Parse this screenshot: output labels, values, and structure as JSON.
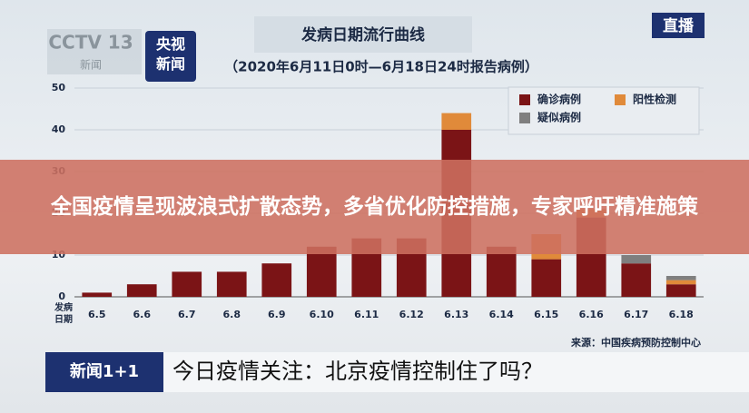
{
  "chart_data": {
    "type": "bar",
    "stacked": true,
    "title": "发病日期流行曲线",
    "subtitle": "（2020年6月11日0时—6月18日24时报告病例）",
    "x_label": "发病日期",
    "source": "来源：中国疾病预防控制中心",
    "categories": [
      "6.5",
      "6.6",
      "6.7",
      "6.8",
      "6.9",
      "6.10",
      "6.11",
      "6.12",
      "6.13",
      "6.14",
      "6.15",
      "6.16",
      "6.17",
      "6.18"
    ],
    "series": [
      {
        "name": "确诊病例",
        "color": "#7b1416",
        "values": [
          1,
          3,
          6,
          6,
          8,
          12,
          14,
          14,
          40,
          12,
          9,
          19,
          8,
          3
        ]
      },
      {
        "name": "阳性检测",
        "color": "#e08a3a",
        "values": [
          0,
          0,
          0,
          0,
          0,
          0,
          0,
          0,
          4,
          0,
          6,
          2,
          0,
          1
        ]
      },
      {
        "name": "疑似病例",
        "color": "#7f7f7f",
        "values": [
          0,
          0,
          0,
          0,
          0,
          0,
          0,
          0,
          0,
          0,
          0,
          0,
          2,
          1
        ]
      }
    ],
    "ylim": [
      0,
      50
    ],
    "yticks": [
      0,
      10,
      20,
      30,
      40,
      50
    ],
    "grid": true
  },
  "overlay": {
    "channel_logo": "CCTV 13",
    "channel_sub": "新闻",
    "app_logo": "央视新闻",
    "live": "直播",
    "headline": "全国疫情呈现波浪式扩散态势，多省优化防控措施，专家呼吁精准施策",
    "program": "新闻1+1",
    "ticker": "今日疫情关注：北京疫情控制住了吗？"
  }
}
